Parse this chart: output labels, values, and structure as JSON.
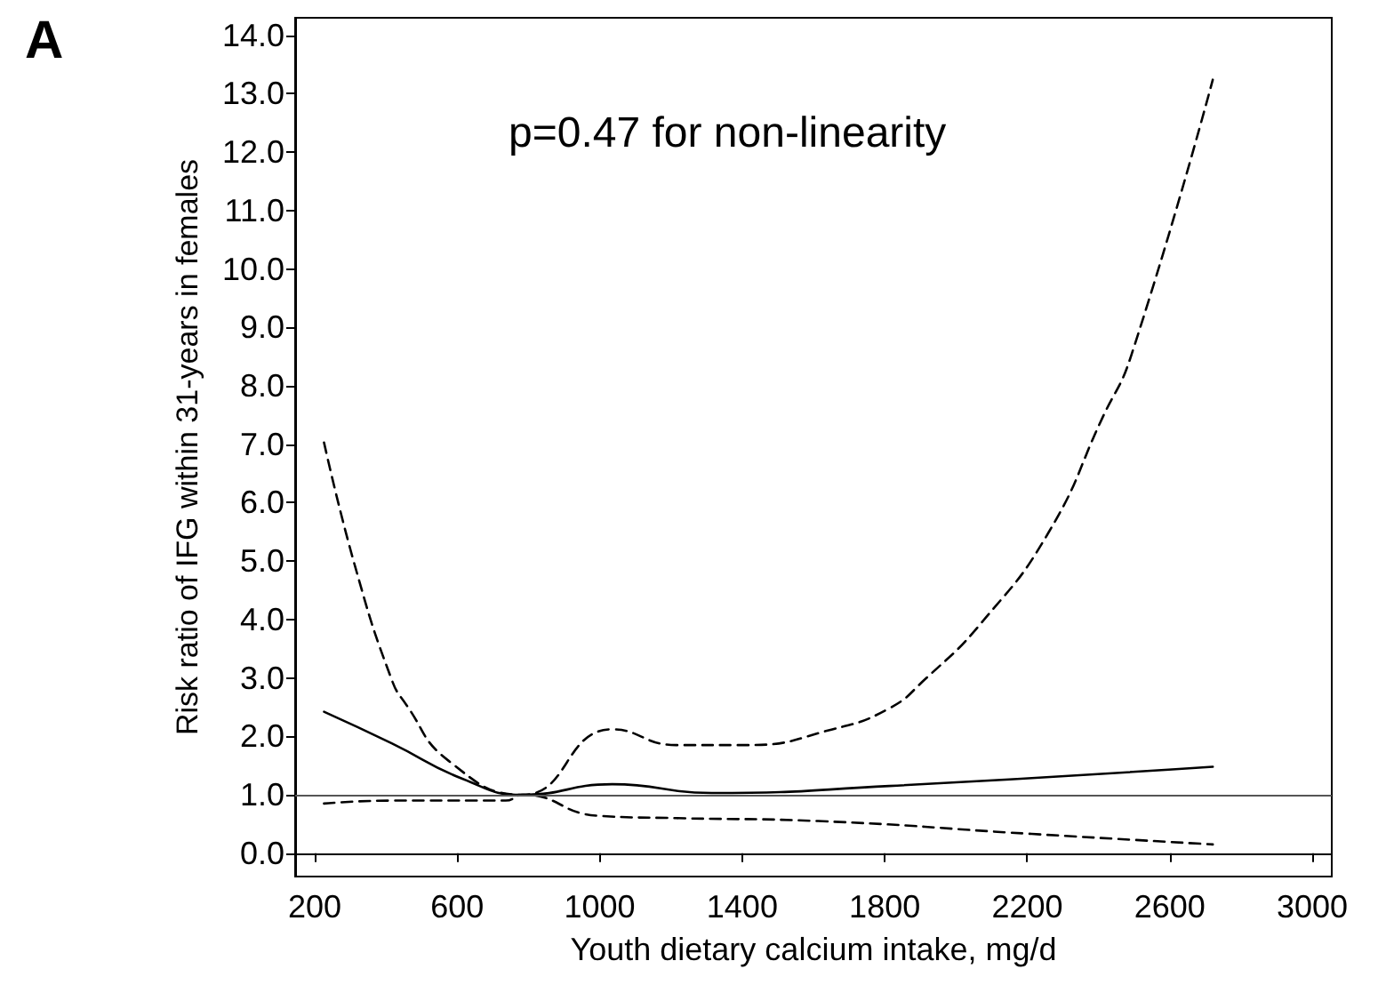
{
  "chart_data": {
    "type": "line",
    "xlabel": "Youth dietary calcium intake, mg/d",
    "ylabel": "Risk ratio of IFG within 31-years in females",
    "annotations": [
      "A",
      "p=0.47 for non-linearity"
    ],
    "series": [
      {
        "color": "#000000",
        "line_style": "solid",
        "x": [
          226,
          416,
          616,
          784,
          1035,
          1314,
          1813,
          2721
        ],
        "values": [
          2.42,
          1.88,
          1.27,
          1.0,
          1.18,
          1.03,
          1.15,
          1.48
        ]
      },
      {
        "color": "#000000",
        "line_style": "dashed",
        "x": [
          226,
          316,
          416,
          456,
          576,
          784,
          1035,
          1214,
          1414,
          1653,
          1813,
          1912,
          2071,
          2261,
          2411,
          2491,
          2721
        ],
        "values": [
          7.03,
          4.85,
          2.97,
          2.55,
          1.58,
          1.0,
          2.12,
          1.85,
          1.85,
          2.12,
          2.48,
          2.97,
          3.94,
          5.5,
          7.45,
          8.5,
          13.24
        ]
      },
      {
        "color": "#000000",
        "line_style": "dashed",
        "x": [
          226,
          416,
          736,
          784,
          995,
          1214,
          1613,
          2212,
          2721
        ],
        "values": [
          0.85,
          0.9,
          0.9,
          1.0,
          0.64,
          0.6,
          0.55,
          0.33,
          0.15
        ]
      }
    ],
    "xlim": [
      145,
      3055
    ],
    "xticks": [
      200,
      600,
      1000,
      1400,
      1800,
      2200,
      2600,
      3000
    ],
    "ylim": [
      -0.4,
      14.3
    ],
    "yticks": [
      {
        "value": 0,
        "label": "0.0"
      },
      {
        "value": 1,
        "label": "1.0"
      },
      {
        "value": 2,
        "label": "2.0"
      },
      {
        "value": 3,
        "label": "3.0"
      },
      {
        "value": 4,
        "label": "4.0"
      },
      {
        "value": 5,
        "label": "5.0"
      },
      {
        "value": 6,
        "label": "6.0"
      },
      {
        "value": 7,
        "label": "7.0"
      },
      {
        "value": 8,
        "label": "8.0"
      },
      {
        "value": 9,
        "label": "9.0"
      },
      {
        "value": 10,
        "label": "10.0"
      },
      {
        "value": 11,
        "label": "11.0"
      },
      {
        "value": 12,
        "label": "12.0"
      },
      {
        "value": 13,
        "label": "13.0"
      },
      {
        "value": 14,
        "label": "14.0"
      }
    ],
    "ref_lines": [
      {
        "axis": "y",
        "value": 1,
        "color": "#555555",
        "line_style": "solid"
      }
    ],
    "grid": false,
    "marker": "none"
  }
}
